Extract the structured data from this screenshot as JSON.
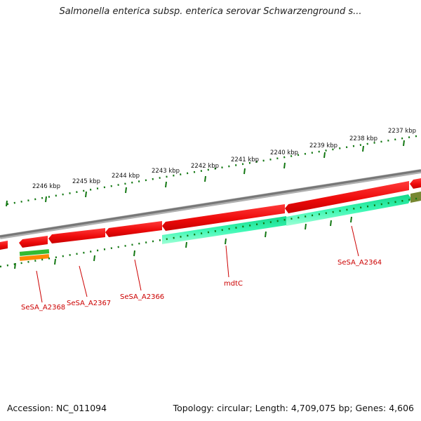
{
  "header": {
    "title": "Salmonella enterica subsp. enterica serovar Schwarzenground s..."
  },
  "ruler": {
    "ticks": [
      "2237 kbp",
      "2238 kbp",
      "2239 kbp",
      "2240 kbp",
      "2241 kbp",
      "2242 kbp",
      "2243 kbp",
      "2244 kbp",
      "2245 kbp",
      "2246 kbp"
    ]
  },
  "genes": {
    "labels": [
      "SeSA_A2364",
      "mdtC",
      "SeSA_A2366",
      "SeSA_A2367",
      "SeSA_A2368"
    ]
  },
  "colors": {
    "backbone": "#777777",
    "forward_cds": "#ee1111",
    "reverse_cds": "#22ee99",
    "small_green": "#33bb33",
    "small_orange": "#ff8800",
    "olive": "#778833",
    "tick": "#117711",
    "label": "#cc0000"
  },
  "footer": {
    "accession": "Accession: NC_011094",
    "stats": "Topology: circular; Length: 4,709,075 bp; Genes: 4,606"
  }
}
